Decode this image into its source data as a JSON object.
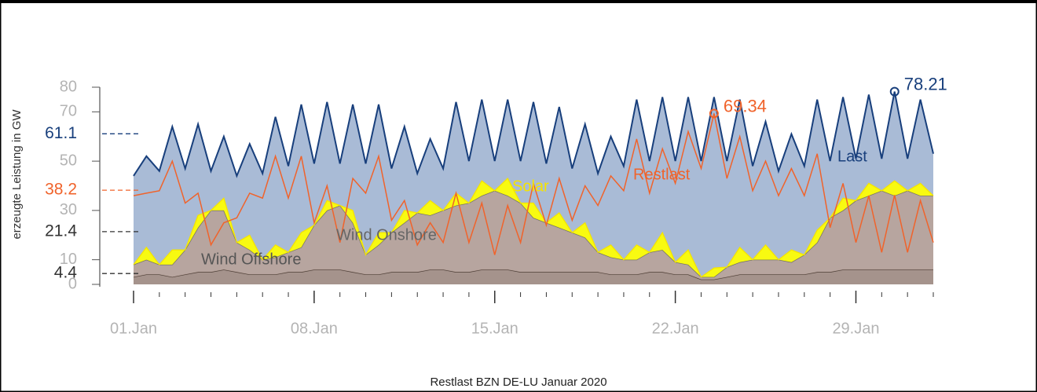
{
  "chart_data": {
    "type": "area",
    "title": "Restlast BZN DE-LU Januar 2020",
    "y_label": "erzeugte Leistung in GW",
    "xlim": [
      0,
      31
    ],
    "xticks": [
      {
        "value": 0,
        "label": "01.Jan"
      },
      {
        "value": 7,
        "label": "08.Jan"
      },
      {
        "value": 14,
        "label": "15.Jan"
      },
      {
        "value": 21,
        "label": "22.Jan"
      },
      {
        "value": 28,
        "label": "29.Jan"
      }
    ],
    "xminorticks": [
      0,
      1,
      2,
      3,
      4,
      5,
      6,
      7,
      8,
      9,
      10,
      11,
      12,
      13,
      14,
      15,
      16,
      17,
      18,
      19,
      20,
      21,
      22,
      23,
      24,
      25,
      26,
      27,
      28,
      29,
      30,
      31
    ],
    "ylim": [
      0,
      80
    ],
    "yticks": [
      0,
      10,
      30,
      50,
      70,
      80
    ],
    "x": [
      0,
      0.5,
      1,
      1.5,
      2,
      2.5,
      3,
      3.5,
      4,
      4.5,
      5,
      5.5,
      6,
      6.5,
      7,
      7.5,
      8,
      8.5,
      9,
      9.5,
      10,
      10.5,
      11,
      11.5,
      12,
      12.5,
      13,
      13.5,
      14,
      14.5,
      15,
      15.5,
      16,
      16.5,
      17,
      17.5,
      18,
      18.5,
      19,
      19.5,
      20,
      20.5,
      21,
      21.5,
      22,
      22.5,
      23,
      23.5,
      24,
      24.5,
      25,
      25.5,
      26,
      26.5,
      27,
      27.5,
      28,
      28.5,
      29,
      29.5,
      30,
      30.5,
      31
    ],
    "series": [
      {
        "name": "Last",
        "style": "area",
        "stacked": false,
        "color": "#183f7c",
        "fill": "#a9bbd6",
        "mean": 61.1,
        "mark_max": true,
        "values": [
          44,
          52,
          46,
          64,
          47,
          65,
          46,
          60,
          44,
          57,
          45,
          68,
          48,
          73,
          49,
          74,
          49,
          73,
          49,
          73,
          47,
          64,
          45,
          59,
          47,
          74,
          50,
          75,
          50,
          75,
          50,
          74,
          49,
          72,
          47,
          65,
          45,
          60,
          48,
          75,
          50,
          76,
          50,
          76,
          50,
          76,
          50,
          75,
          48,
          66,
          46,
          61,
          48,
          75,
          50,
          76,
          51,
          77,
          51,
          78.21,
          51,
          75,
          53
        ]
      },
      {
        "name": "Restlast",
        "style": "line",
        "stacked": false,
        "color": "#f0632b",
        "mean": 38.2,
        "mark_max": true,
        "values": [
          36,
          37,
          38,
          50,
          33,
          37,
          16,
          25,
          27,
          37,
          35,
          52,
          35,
          52,
          25,
          40,
          17,
          43,
          37,
          52,
          26,
          34,
          16,
          25,
          17,
          37,
          17,
          33,
          12,
          32,
          17,
          41,
          24,
          43,
          26,
          40,
          32,
          44,
          38,
          59,
          37,
          55,
          41,
          62,
          47,
          69.34,
          43,
          60,
          38,
          50,
          36,
          47,
          36,
          53,
          23,
          41,
          17,
          36,
          13,
          36.21,
          13,
          34,
          17
        ]
      },
      {
        "name": "Wind Offshore",
        "style": "area",
        "stacked": true,
        "color": "#4d3f38",
        "fill": "#a58f85",
        "mean": 4.4,
        "values": [
          3,
          4,
          4,
          3,
          4,
          5,
          5,
          6,
          5,
          4,
          4,
          4,
          5,
          5,
          6,
          6,
          6,
          5,
          4,
          4,
          5,
          5,
          5,
          6,
          6,
          5,
          5,
          6,
          6,
          6,
          5,
          5,
          5,
          5,
          5,
          5,
          5,
          4,
          4,
          4,
          5,
          5,
          4,
          4,
          2,
          2,
          3,
          4,
          4,
          4,
          4,
          4,
          4,
          5,
          5,
          6,
          6,
          6,
          6,
          6,
          6,
          6,
          6
        ]
      },
      {
        "name": "Wind Onshore",
        "style": "area",
        "stacked": true,
        "color": "#6b6b6b",
        "fill": "#b9a39a",
        "mean": 21.4,
        "values": [
          5,
          6,
          4,
          5,
          10,
          18,
          25,
          24,
          12,
          10,
          6,
          7,
          8,
          10,
          18,
          24,
          26,
          20,
          8,
          12,
          16,
          20,
          24,
          22,
          24,
          27,
          28,
          30,
          32,
          30,
          28,
          22,
          20,
          18,
          16,
          14,
          8,
          7,
          6,
          6,
          8,
          9,
          5,
          4,
          1,
          1,
          4,
          5,
          6,
          6,
          6,
          5,
          8,
          12,
          22,
          24,
          28,
          30,
          32,
          30,
          32,
          30,
          30
        ]
      },
      {
        "name": "Solar",
        "style": "area",
        "stacked": true,
        "color": "#f5e400",
        "fill": "#ffff00",
        "values": [
          0,
          5,
          0,
          6,
          0,
          5,
          0,
          5,
          0,
          6,
          0,
          5,
          0,
          6,
          0,
          4,
          0,
          5,
          0,
          5,
          0,
          5,
          0,
          6,
          0,
          5,
          0,
          6,
          0,
          7,
          0,
          6,
          0,
          6,
          0,
          6,
          0,
          5,
          0,
          6,
          0,
          7,
          0,
          6,
          0,
          3.66,
          0,
          6,
          0,
          6,
          0,
          5,
          0,
          5,
          0,
          5,
          0,
          5,
          0,
          6,
          0,
          5,
          0
        ]
      }
    ]
  }
}
